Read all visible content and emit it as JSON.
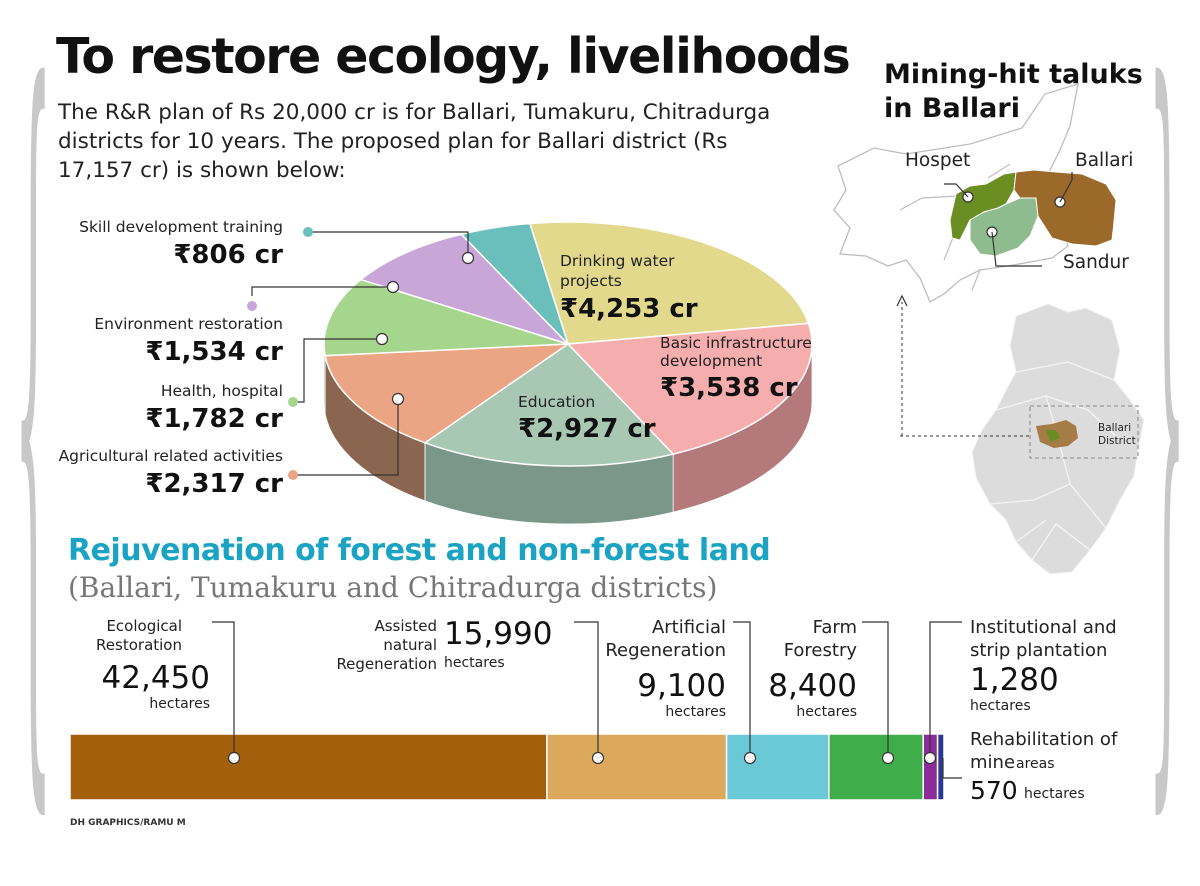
{
  "header": {
    "title": "To restore ecology, livelihoods",
    "subtitle": "The R&R plan of Rs 20,000 cr is for Ballari, Tumakuru, Chitradurga districts for 10 years. The proposed plan for Ballari district (Rs 17,157 cr) is shown below:"
  },
  "map": {
    "title_line1": "Mining-hit taluks",
    "title_line2": "in Ballari",
    "labels": {
      "hospet": "Hospet",
      "ballari": "Ballari",
      "sandur": "Sandur",
      "inset_line1": "Ballari",
      "inset_line2": "District"
    }
  },
  "chart_data": [
    {
      "type": "pie",
      "title": "Proposed plan for Ballari district (Rs 17,157 cr)",
      "unit": "Rs crore",
      "slices": [
        {
          "label": "Drinking water projects",
          "display": "₹4,253 cr",
          "value": 4253,
          "color": "#e2d98c",
          "side": "#b3ac6c"
        },
        {
          "label": "Basic infrastructure development",
          "display": "₹3,538 cr",
          "value": 3538,
          "color": "#f6adae",
          "side": "#b47a7b"
        },
        {
          "label": "Education",
          "display": "₹2,927 cr",
          "value": 2927,
          "color": "#a8c8b3",
          "side": "#7a978a"
        },
        {
          "label": "Agricultural related activities",
          "display": "₹2,317 cr",
          "value": 2317,
          "color": "#eba585",
          "side": "#8a6650"
        },
        {
          "label": "Health, hospital",
          "display": "₹1,782 cr",
          "value": 1782,
          "color": "#a6d58d",
          "side": "#6f955e"
        },
        {
          "label": "Environment restoration",
          "display": "₹1,534 cr",
          "value": 1534,
          "color": "#c8a6d8",
          "side": "#8e739c"
        },
        {
          "label": "Skill development training",
          "display": "₹806 cr",
          "value": 806,
          "color": "#6abebb",
          "side": "#4b8785"
        }
      ]
    },
    {
      "type": "bar",
      "orientation": "horizontal-stacked",
      "title": "Rejuvenation of forest and non-forest land",
      "subtitle": "(Ballari, Tumakuru and Chitradurga districts)",
      "unit": "hectares",
      "segments": [
        {
          "label": "Ecological Restoration",
          "display": "42,450",
          "value": 42450,
          "color": "#a35f0c"
        },
        {
          "label": "Assisted natural Regeneration",
          "display": "15,990",
          "value": 15990,
          "color": "#dca95c"
        },
        {
          "label": "Artificial Regeneration",
          "display": "9,100",
          "value": 9100,
          "color": "#6bc8d6"
        },
        {
          "label": "Farm Forestry",
          "display": "8,400",
          "value": 8400,
          "color": "#3fae4a"
        },
        {
          "label": "Institutional and strip plantation",
          "display": "1,280",
          "value": 1280,
          "color": "#8c2c98"
        },
        {
          "label": "Rehabilitation of mine areas",
          "display": "570",
          "value": 570,
          "color": "#2b3a8f"
        }
      ]
    }
  ],
  "labels": {
    "eco_l1": "Ecological",
    "eco_l2": "Restoration",
    "anr_l1": "Assisted",
    "anr_l2": "natural",
    "anr_l3": "Regeneration",
    "art_l1": "Artificial",
    "art_l2": "Regeneration",
    "farm_l1": "Farm",
    "farm_l2": "Forestry",
    "inst_l1": "Institutional and",
    "inst_l2": "strip plantation",
    "reh_l1": "Rehabilitation of",
    "reh_l2": "mine",
    "reh_l3": "areas",
    "hectares": "hectares",
    "drink_l1": "Drinking water",
    "drink_l2": "projects",
    "basic_l1": "Basic infrastructure",
    "basic_l2": "development"
  },
  "credit": "DH GRAPHICS/RAMU M",
  "colors": {
    "accent": "#1aa3c2",
    "brace": "#c8c8c8",
    "map_gray": "#dcdcdc"
  }
}
